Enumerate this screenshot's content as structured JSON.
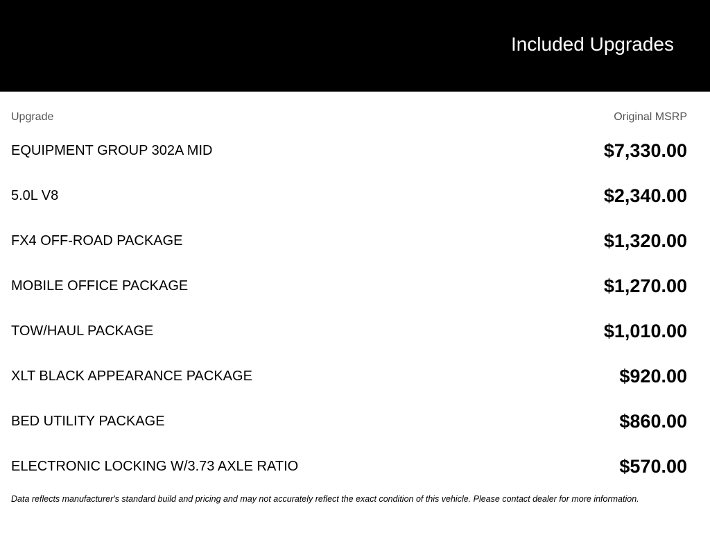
{
  "header": {
    "title": "Included Upgrades"
  },
  "columns": {
    "upgrade": "Upgrade",
    "msrp": "Original MSRP"
  },
  "rows": [
    {
      "name": "EQUIPMENT GROUP 302A MID",
      "price": "$7,330.00"
    },
    {
      "name": "5.0L V8",
      "price": "$2,340.00"
    },
    {
      "name": "FX4 OFF-ROAD PACKAGE",
      "price": "$1,320.00"
    },
    {
      "name": "MOBILE OFFICE PACKAGE",
      "price": "$1,270.00"
    },
    {
      "name": "TOW/HAUL PACKAGE",
      "price": "$1,010.00"
    },
    {
      "name": "XLT BLACK APPEARANCE PACKAGE",
      "price": "$920.00"
    },
    {
      "name": "BED UTILITY PACKAGE",
      "price": "$860.00"
    },
    {
      "name": "ELECTRONIC LOCKING W/3.73 AXLE RATIO",
      "price": "$570.00"
    }
  ],
  "footnote": "Data reflects manufacturer's standard build and pricing and may not accurately reflect the exact condition of this vehicle. Please contact dealer for more information."
}
